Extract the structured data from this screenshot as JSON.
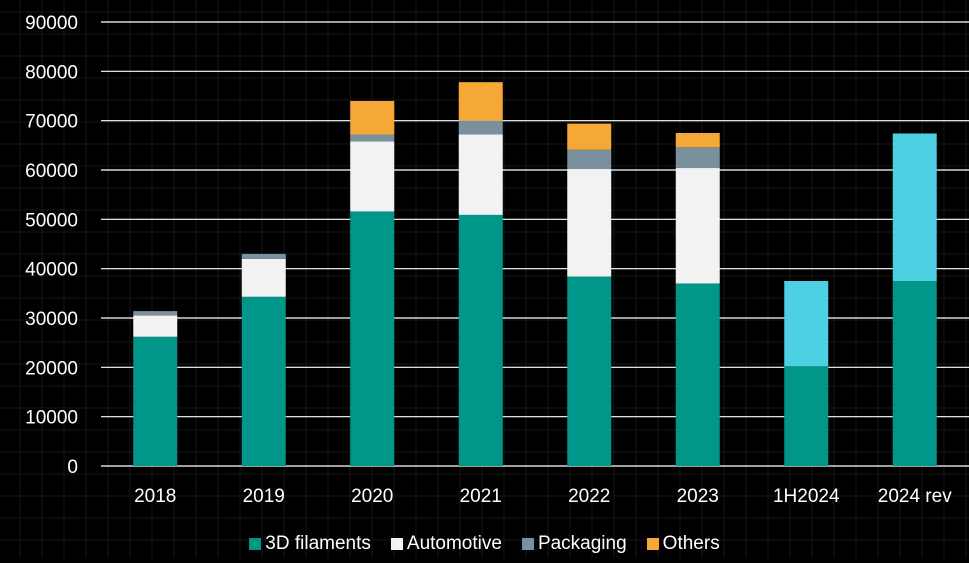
{
  "chart_data": {
    "type": "bar",
    "stacked": true,
    "categories": [
      "2018",
      "2019",
      "2020",
      "2021",
      "2022",
      "2023",
      "1H2024",
      "2024 rev"
    ],
    "series": [
      {
        "name": "3D filaments",
        "color": "#00968a",
        "values": [
          26200,
          34300,
          51600,
          50900,
          38400,
          37000,
          20200,
          37500
        ]
      },
      {
        "name": "Automotive",
        "color": "#f2f2f2",
        "values": [
          4300,
          7700,
          14200,
          16300,
          21800,
          23400,
          0,
          0
        ]
      },
      {
        "name": "Packaging",
        "color": "#7a909c",
        "values": [
          900,
          1000,
          1400,
          2800,
          3900,
          4200,
          0,
          0
        ]
      },
      {
        "name": "Others",
        "color": "#f5a838",
        "values": [
          0,
          0,
          6800,
          7800,
          5300,
          2900,
          0,
          0
        ]
      },
      {
        "color": "#4dd0e1",
        "values": [
          0,
          0,
          0,
          0,
          0,
          0,
          17300,
          29900
        ]
      }
    ],
    "ylim": [
      0,
      90000
    ],
    "yticks": [
      "0",
      "10000",
      "20000",
      "30000",
      "40000",
      "50000",
      "60000",
      "70000",
      "80000",
      "90000"
    ],
    "title": "",
    "xlabel": "",
    "ylabel": "",
    "grid": true,
    "legend_position": "bottom"
  }
}
